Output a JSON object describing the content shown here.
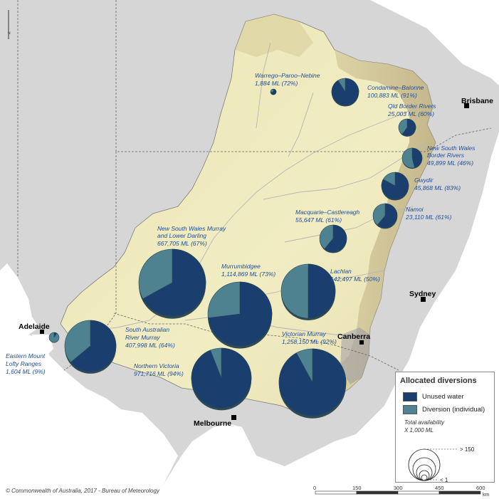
{
  "cities": {
    "brisbane": "Brisbane",
    "sydney": "Sydney",
    "canberra": "Canberra",
    "melbourne": "Melbourne",
    "adelaide": "Adelaide"
  },
  "regions": [
    {
      "name": "Warrego–Paroo–Nebine",
      "value": "1,884 ML (72%)",
      "unused_pct": 72
    },
    {
      "name": "Condamine–Balonne",
      "value": "100,883 ML (91%)",
      "unused_pct": 91
    },
    {
      "name": "Qld Border Rivers",
      "value": "25,003 ML (60%)",
      "unused_pct": 60
    },
    {
      "name": "New South Wales",
      "name2": "Border Rivers",
      "value": "49,899 ML (46%)",
      "unused_pct": 46
    },
    {
      "name": "Gwydir",
      "value": "45,868 ML (83%)",
      "unused_pct": 83
    },
    {
      "name": "Namoi",
      "value": "23,110 ML (61%)",
      "unused_pct": 61
    },
    {
      "name": "Macquarie–Castlereagh",
      "value": "55,647 ML (61%)",
      "unused_pct": 61
    },
    {
      "name": "New South Wales Murray",
      "name2": "and Lower Darling",
      "value": "667,705 ML (67%)",
      "unused_pct": 67
    },
    {
      "name": "Murrumbidgee",
      "value": "1,114,869 ML (73%)",
      "unused_pct": 73
    },
    {
      "name": "Lachlan",
      "value": "142,497 ML (50%)",
      "unused_pct": 50
    },
    {
      "name": "South Australian",
      "name2": "River Murray",
      "value": "407,998 ML (64%)",
      "unused_pct": 64
    },
    {
      "name": "Eastern Mount",
      "name2": "Lofty Ranges",
      "value": "1,604 ML (9%)",
      "unused_pct": 9
    },
    {
      "name": "Northern Victoria",
      "value": "971,716 ML (94%)",
      "unused_pct": 94
    },
    {
      "name": "Victorian Murray",
      "value": "1,258,150 ML (92%)",
      "unused_pct": 92
    }
  ],
  "legend": {
    "title": "Allocated diversions",
    "unused_label": "Unused water",
    "diversion_label": "Diversion (individual)",
    "total_label": "Total availability",
    "unit_label": "X 1,000 ML",
    "max_label": "> 150",
    "min_label": "< 1",
    "colors": {
      "unused": "#1a3f6e",
      "diversion": "#4e8290"
    }
  },
  "scale_bar": {
    "ticks": [
      "0",
      "150",
      "300",
      "450",
      "600"
    ],
    "unit": "km"
  },
  "north_label": "N",
  "copyright": "© Commonwealth of Australia, 2017 - Bureau of Meteorology"
}
